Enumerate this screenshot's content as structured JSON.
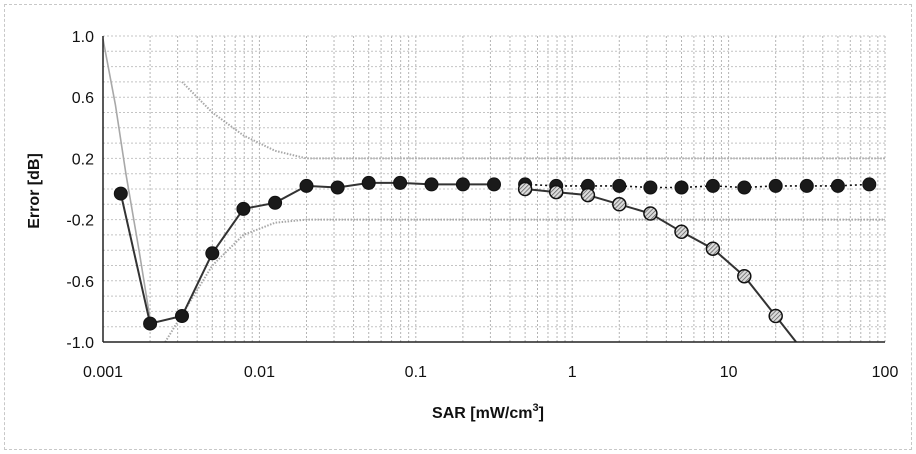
{
  "chart_data": {
    "type": "scatter",
    "x_scale": "log",
    "xlim": [
      0.001,
      100
    ],
    "ylim": [
      -1.0,
      1.0
    ],
    "xlabel": "SAR [mW/cm",
    "xlabel_sup": "3",
    "xlabel_suffix": "]",
    "ylabel": "Error [dB]",
    "xtick_labels": [
      "0.001",
      "0.01",
      "0.1",
      "1",
      "10",
      "100"
    ],
    "xtick_values": [
      0.001,
      0.01,
      0.1,
      1,
      10,
      100
    ],
    "ytick_labels": [
      "1.0",
      "0.6",
      "0.2",
      "-0.2",
      "-0.6",
      "-1.0"
    ],
    "ytick_values": [
      1.0,
      0.6,
      0.2,
      -0.2,
      -0.6,
      -1.0
    ],
    "grid": true,
    "legend": "none",
    "series": [
      {
        "marker": "filled-circle",
        "line": "solid",
        "color": "#333333",
        "x": [
          0.0013,
          0.002,
          0.0032,
          0.005,
          0.0079,
          0.0126,
          0.02,
          0.0316,
          0.05,
          0.0794,
          0.126,
          0.2,
          0.316
        ],
        "y": [
          -0.03,
          -0.88,
          -0.83,
          -0.42,
          -0.13,
          -0.09,
          0.02,
          0.01,
          0.04,
          0.04,
          0.03,
          0.03,
          0.03
        ]
      },
      {
        "marker": "filled-circle",
        "line": "dotted",
        "color": "#111111",
        "x": [
          0.5,
          0.79,
          1.26,
          2.0,
          3.16,
          5.0,
          7.94,
          12.6,
          20.0,
          31.6,
          50.0,
          79.4
        ],
        "y": [
          0.03,
          0.02,
          0.02,
          0.02,
          0.01,
          0.01,
          0.02,
          0.01,
          0.02,
          0.02,
          0.02,
          0.03
        ]
      },
      {
        "marker": "hatched-circle",
        "line": "solid",
        "color": "#333333",
        "x": [
          0.5,
          0.79,
          1.26,
          2.0,
          3.16,
          5.0,
          7.94,
          12.6,
          20.0
        ],
        "y": [
          0.0,
          -0.02,
          -0.04,
          -0.1,
          -0.16,
          -0.28,
          -0.39,
          -0.57,
          -0.83
        ],
        "line_extends_to": [
          27.0,
          -1.0
        ]
      }
    ],
    "uncertainty_band": {
      "color": "#a8a8a8",
      "upper": {
        "x": [
          0.0032,
          0.005,
          0.0079,
          0.0126,
          0.02,
          100
        ],
        "y": [
          0.7,
          0.5,
          0.35,
          0.25,
          0.2,
          0.2
        ]
      },
      "lower": {
        "x": [
          0.0025,
          0.005,
          0.0079,
          0.0126,
          0.02,
          100
        ],
        "y": [
          -1.0,
          -0.5,
          -0.3,
          -0.22,
          -0.2,
          -0.2
        ]
      },
      "left_curve": {
        "x": [
          0.001,
          0.0012,
          0.0014,
          0.0017,
          0.002
        ],
        "y": [
          0.98,
          0.55,
          0.1,
          -0.4,
          -0.85
        ]
      }
    }
  }
}
